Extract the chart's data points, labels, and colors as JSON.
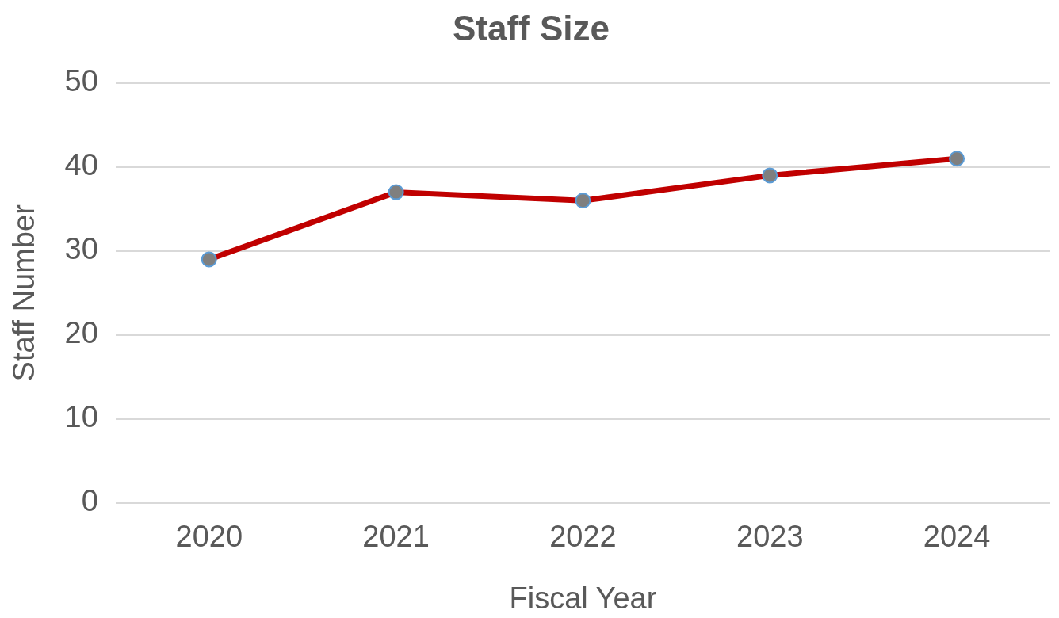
{
  "chart_data": {
    "type": "line",
    "title": "Staff Size",
    "xlabel": "Fiscal Year",
    "ylabel": "Staff Number",
    "categories": [
      "2020",
      "2021",
      "2022",
      "2023",
      "2024"
    ],
    "series": [
      {
        "color": "#c00000",
        "values": [
          29,
          37,
          36,
          39,
          41
        ]
      }
    ],
    "ylim": [
      0,
      50
    ],
    "yticks": [
      0,
      10,
      20,
      30,
      40,
      50
    ],
    "grid": "y",
    "legend": false,
    "marker": "circle"
  }
}
